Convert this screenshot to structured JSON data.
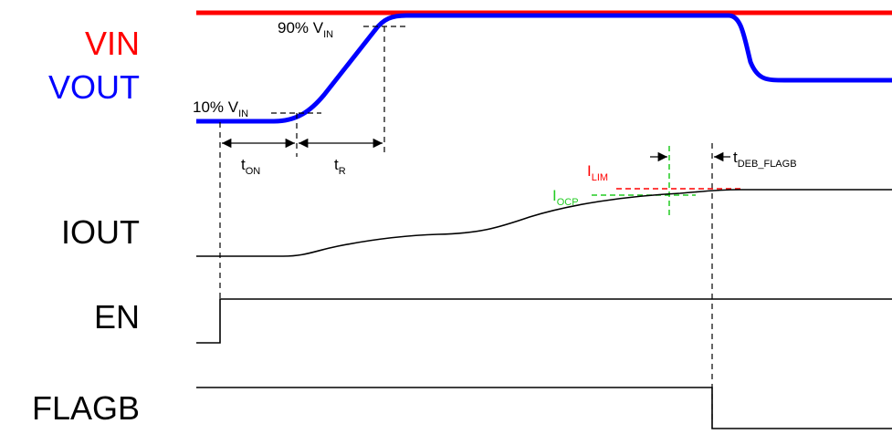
{
  "labels": {
    "vin": "VIN",
    "vout": "VOUT",
    "iout": "IOUT",
    "en": "EN",
    "flagb": "FLAGB"
  },
  "annotations": {
    "vin90": {
      "main": "90% V",
      "sub": "IN"
    },
    "vin10": {
      "main": "10% V",
      "sub": "IN"
    },
    "ton": {
      "main": "t",
      "sub": "ON"
    },
    "tr": {
      "main": "t",
      "sub": "R"
    },
    "ilim": {
      "main": "I",
      "sub": "LIM"
    },
    "iocp": {
      "main": "I",
      "sub": "OCP"
    },
    "tdeb": {
      "main": "t",
      "sub": "DEB_FLAGB"
    }
  },
  "colors": {
    "vin": "#ff0000",
    "vout": "#0000ff",
    "ilim": "#ff0000",
    "iocp": "#22cc22",
    "trace": "#000000",
    "dashed": "#000000"
  }
}
